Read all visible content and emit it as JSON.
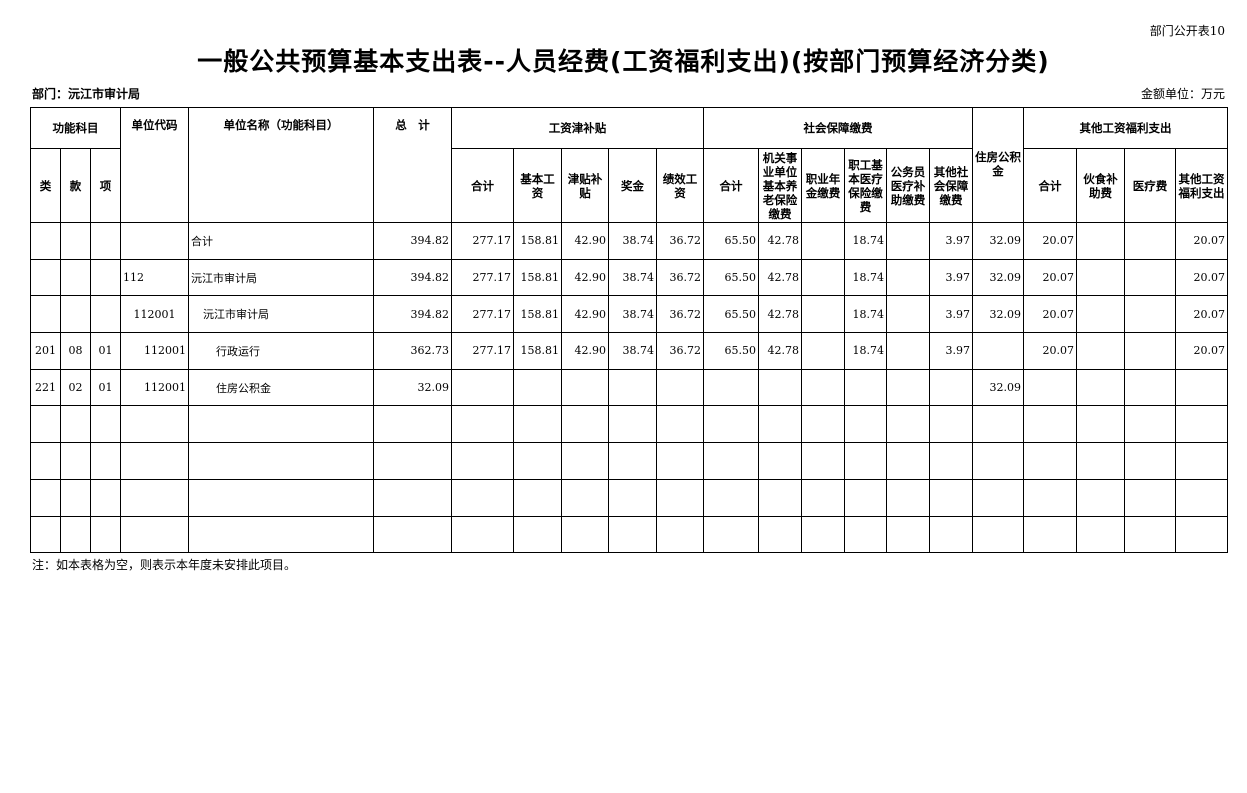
{
  "form_no": "部门公开表10",
  "title": "一般公共预算基本支出表--人员经费(工资福利支出)(按部门预算经济分类)",
  "department": "部门：沅江市审计局",
  "unit": "金额单位：万元",
  "headers": {
    "func_subject": "功能科目",
    "lei": "类",
    "kuan": "款",
    "xiang": "项",
    "unit_code": "单位代码",
    "unit_name": "单位名称（功能科目）",
    "total": "总　计",
    "wage_group": "工资津补贴",
    "wage_total": "合计",
    "basic": "基本工资",
    "allowance": "津贴补贴",
    "bonus": "奖金",
    "performance": "绩效工资",
    "ss_group": "社会保障缴费",
    "ss_total": "合计",
    "pension": "机关事业单位基本养老保险缴费",
    "occupational": "职业年金缴费",
    "medical": "职工基本医疗保险缴费",
    "civil_medical": "公务员医疗补助缴费",
    "other_ss": "其他社会保障缴费",
    "housing": "住房公积金",
    "other_group": "其他工资福利支出",
    "other_total": "合计",
    "food": "伙食补助费",
    "medical_fee": "医疗费",
    "other_welfare": "其他工资福利支出"
  },
  "rows": [
    [
      "",
      "",
      "",
      "",
      "合计",
      "394.82",
      "277.17",
      "158.81",
      "42.90",
      "38.74",
      "36.72",
      "65.50",
      "42.78",
      "",
      "18.74",
      "",
      "3.97",
      "32.09",
      "20.07",
      "",
      "",
      "20.07"
    ],
    [
      "",
      "",
      "",
      "112",
      "沅江市审计局",
      "394.82",
      "277.17",
      "158.81",
      "42.90",
      "38.74",
      "36.72",
      "65.50",
      "42.78",
      "",
      "18.74",
      "",
      "3.97",
      "32.09",
      "20.07",
      "",
      "",
      "20.07"
    ],
    [
      "",
      "",
      "",
      "112001",
      "沅江市审计局",
      "394.82",
      "277.17",
      "158.81",
      "42.90",
      "38.74",
      "36.72",
      "65.50",
      "42.78",
      "",
      "18.74",
      "",
      "3.97",
      "32.09",
      "20.07",
      "",
      "",
      "20.07"
    ],
    [
      "201",
      "08",
      "01",
      "112001",
      "行政运行",
      "362.73",
      "277.17",
      "158.81",
      "42.90",
      "38.74",
      "36.72",
      "65.50",
      "42.78",
      "",
      "18.74",
      "",
      "3.97",
      "",
      "20.07",
      "",
      "",
      "20.07"
    ],
    [
      "221",
      "02",
      "01",
      "112001",
      "住房公积金",
      "32.09",
      "",
      "",
      "",
      "",
      "",
      "",
      "",
      "",
      "",
      "",
      "",
      "32.09",
      "",
      "",
      "",
      ""
    ],
    [
      "",
      "",
      "",
      "",
      "",
      "",
      "",
      "",
      "",
      "",
      "",
      "",
      "",
      "",
      "",
      "",
      "",
      "",
      "",
      "",
      "",
      ""
    ],
    [
      "",
      "",
      "",
      "",
      "",
      "",
      "",
      "",
      "",
      "",
      "",
      "",
      "",
      "",
      "",
      "",
      "",
      "",
      "",
      "",
      "",
      ""
    ],
    [
      "",
      "",
      "",
      "",
      "",
      "",
      "",
      "",
      "",
      "",
      "",
      "",
      "",
      "",
      "",
      "",
      "",
      "",
      "",
      "",
      "",
      ""
    ],
    [
      "",
      "",
      "",
      "",
      "",
      "",
      "",
      "",
      "",
      "",
      "",
      "",
      "",
      "",
      "",
      "",
      "",
      "",
      "",
      "",
      "",
      ""
    ]
  ],
  "note": "注：如本表格为空，则表示本年度未安排此项目。"
}
